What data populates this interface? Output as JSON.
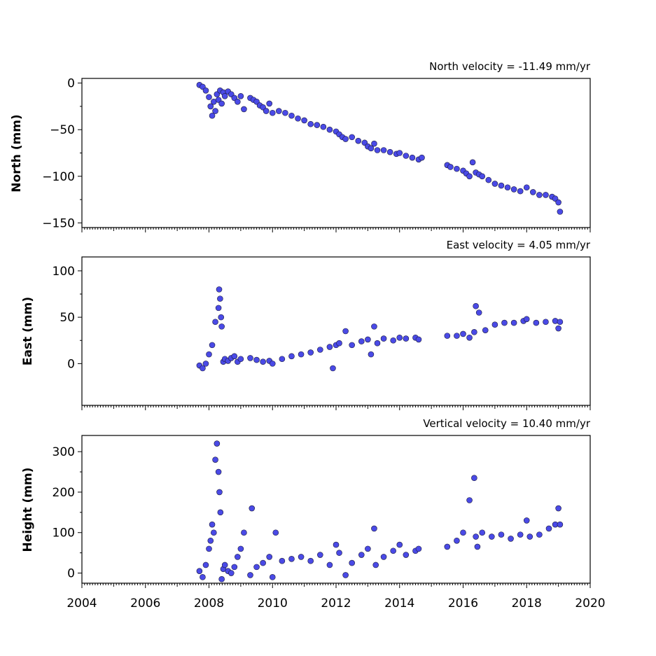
{
  "colors": {
    "marker_fill": "#4a4ae6",
    "marker_edge": "#1a1a3a",
    "axes": "#000000",
    "background": "#ffffff"
  },
  "chart_data": [
    {
      "type": "scatter",
      "ylabel": "North (mm)",
      "annotation": "North velocity = -11.49 mm/yr",
      "xlim": [
        2004,
        2020
      ],
      "ylim": [
        -155,
        5
      ],
      "yticks": [
        0,
        -50,
        -100,
        -150
      ],
      "ytick_labels": [
        "0",
        "−50",
        "−100",
        "−150"
      ],
      "xticks": [
        2004,
        2006,
        2008,
        2010,
        2012,
        2014,
        2016,
        2018,
        2020
      ],
      "xtick_labels": [
        "2004",
        "2006",
        "2008",
        "2010",
        "2012",
        "2014",
        "2016",
        "2018",
        "2020"
      ],
      "grid": false,
      "x": [
        2007.7,
        2007.8,
        2007.9,
        2008.0,
        2008.05,
        2008.1,
        2008.15,
        2008.2,
        2008.25,
        2008.3,
        2008.35,
        2008.4,
        2008.45,
        2008.5,
        2008.6,
        2008.7,
        2008.8,
        2008.9,
        2009.0,
        2009.1,
        2009.3,
        2009.4,
        2009.5,
        2009.6,
        2009.7,
        2009.8,
        2009.9,
        2010.0,
        2010.2,
        2010.4,
        2010.6,
        2010.8,
        2011.0,
        2011.2,
        2011.4,
        2011.6,
        2011.8,
        2012.0,
        2012.1,
        2012.2,
        2012.3,
        2012.5,
        2012.7,
        2012.9,
        2013.0,
        2013.1,
        2013.2,
        2013.3,
        2013.5,
        2013.7,
        2013.9,
        2014.0,
        2014.2,
        2014.4,
        2014.6,
        2014.7,
        2015.5,
        2015.6,
        2015.8,
        2016.0,
        2016.1,
        2016.2,
        2016.3,
        2016.4,
        2016.5,
        2016.6,
        2016.8,
        2017.0,
        2017.2,
        2017.4,
        2017.6,
        2017.8,
        2018.0,
        2018.2,
        2018.4,
        2018.6,
        2018.8,
        2018.9,
        2019.0,
        2019.05
      ],
      "y": [
        -2,
        -4,
        -8,
        -15,
        -25,
        -35,
        -20,
        -30,
        -12,
        -18,
        -8,
        -22,
        -10,
        -14,
        -9,
        -12,
        -16,
        -20,
        -14,
        -28,
        -16,
        -18,
        -20,
        -24,
        -26,
        -30,
        -22,
        -32,
        -30,
        -32,
        -35,
        -38,
        -40,
        -44,
        -45,
        -47,
        -50,
        -52,
        -55,
        -58,
        -60,
        -58,
        -62,
        -64,
        -68,
        -70,
        -65,
        -72,
        -72,
        -74,
        -76,
        -75,
        -78,
        -80,
        -82,
        -80,
        -88,
        -90,
        -92,
        -94,
        -97,
        -100,
        -85,
        -96,
        -98,
        -100,
        -104,
        -108,
        -110,
        -112,
        -114,
        -116,
        -112,
        -117,
        -120,
        -120,
        -122,
        -124,
        -128,
        -138
      ]
    },
    {
      "type": "scatter",
      "ylabel": "East (mm)",
      "annotation": "East velocity = 4.05 mm/yr",
      "xlim": [
        2004,
        2020
      ],
      "ylim": [
        -45,
        115
      ],
      "yticks": [
        100,
        50,
        0
      ],
      "ytick_labels": [
        "100",
        "50",
        "0"
      ],
      "xticks": [
        2004,
        2006,
        2008,
        2010,
        2012,
        2014,
        2016,
        2018,
        2020
      ],
      "grid": false,
      "x": [
        2007.7,
        2007.8,
        2007.9,
        2008.0,
        2008.1,
        2008.2,
        2008.3,
        2008.32,
        2008.35,
        2008.38,
        2008.4,
        2008.45,
        2008.5,
        2008.6,
        2008.7,
        2008.8,
        2008.9,
        2009.0,
        2009.3,
        2009.5,
        2009.7,
        2009.9,
        2010.0,
        2010.3,
        2010.6,
        2010.9,
        2011.2,
        2011.5,
        2011.8,
        2011.9,
        2012.0,
        2012.1,
        2012.3,
        2012.5,
        2012.8,
        2013.0,
        2013.1,
        2013.2,
        2013.3,
        2013.5,
        2013.8,
        2014.0,
        2014.2,
        2014.5,
        2014.6,
        2015.5,
        2015.8,
        2016.0,
        2016.2,
        2016.35,
        2016.4,
        2016.5,
        2016.7,
        2017.0,
        2017.3,
        2017.6,
        2017.9,
        2018.0,
        2018.3,
        2018.6,
        2018.9,
        2019.0,
        2019.05
      ],
      "y": [
        -2,
        -5,
        0,
        10,
        20,
        45,
        60,
        80,
        70,
        50,
        40,
        2,
        5,
        3,
        6,
        8,
        2,
        5,
        6,
        4,
        2,
        3,
        0,
        5,
        8,
        10,
        12,
        15,
        18,
        -5,
        20,
        22,
        35,
        20,
        24,
        26,
        10,
        40,
        22,
        27,
        25,
        28,
        27,
        28,
        26,
        30,
        30,
        32,
        28,
        34,
        62,
        55,
        36,
        42,
        44,
        44,
        46,
        48,
        44,
        45,
        46,
        38,
        45
      ]
    },
    {
      "type": "scatter",
      "ylabel": "Height (mm)",
      "annotation": "Vertical velocity = 10.40 mm/yr",
      "xlim": [
        2004,
        2020
      ],
      "ylim": [
        -25,
        340
      ],
      "yticks": [
        300,
        200,
        100,
        0
      ],
      "ytick_labels": [
        "300",
        "200",
        "100",
        "0"
      ],
      "xticks": [
        2004,
        2006,
        2008,
        2010,
        2012,
        2014,
        2016,
        2018,
        2020
      ],
      "grid": false,
      "x": [
        2007.7,
        2007.8,
        2007.9,
        2008.0,
        2008.05,
        2008.1,
        2008.15,
        2008.2,
        2008.25,
        2008.3,
        2008.33,
        2008.36,
        2008.4,
        2008.45,
        2008.5,
        2008.6,
        2008.7,
        2008.8,
        2008.9,
        2009.0,
        2009.1,
        2009.3,
        2009.35,
        2009.5,
        2009.7,
        2009.9,
        2010.0,
        2010.1,
        2010.3,
        2010.6,
        2010.9,
        2011.2,
        2011.5,
        2011.8,
        2012.0,
        2012.1,
        2012.3,
        2012.5,
        2012.8,
        2013.0,
        2013.2,
        2013.25,
        2013.5,
        2013.8,
        2014.0,
        2014.2,
        2014.5,
        2014.6,
        2015.5,
        2015.8,
        2016.0,
        2016.2,
        2016.35,
        2016.4,
        2016.45,
        2016.6,
        2016.9,
        2017.2,
        2017.5,
        2017.8,
        2018.0,
        2018.1,
        2018.4,
        2018.7,
        2018.9,
        2019.0,
        2019.05
      ],
      "y": [
        5,
        -10,
        20,
        60,
        80,
        120,
        100,
        280,
        320,
        250,
        200,
        150,
        -15,
        10,
        20,
        5,
        0,
        15,
        40,
        60,
        100,
        -5,
        160,
        15,
        25,
        40,
        -10,
        100,
        30,
        35,
        40,
        30,
        45,
        20,
        70,
        50,
        -5,
        25,
        45,
        60,
        110,
        20,
        40,
        55,
        70,
        45,
        55,
        60,
        65,
        80,
        100,
        180,
        235,
        90,
        65,
        100,
        90,
        95,
        85,
        95,
        130,
        90,
        95,
        110,
        120,
        160,
        120
      ]
    }
  ]
}
